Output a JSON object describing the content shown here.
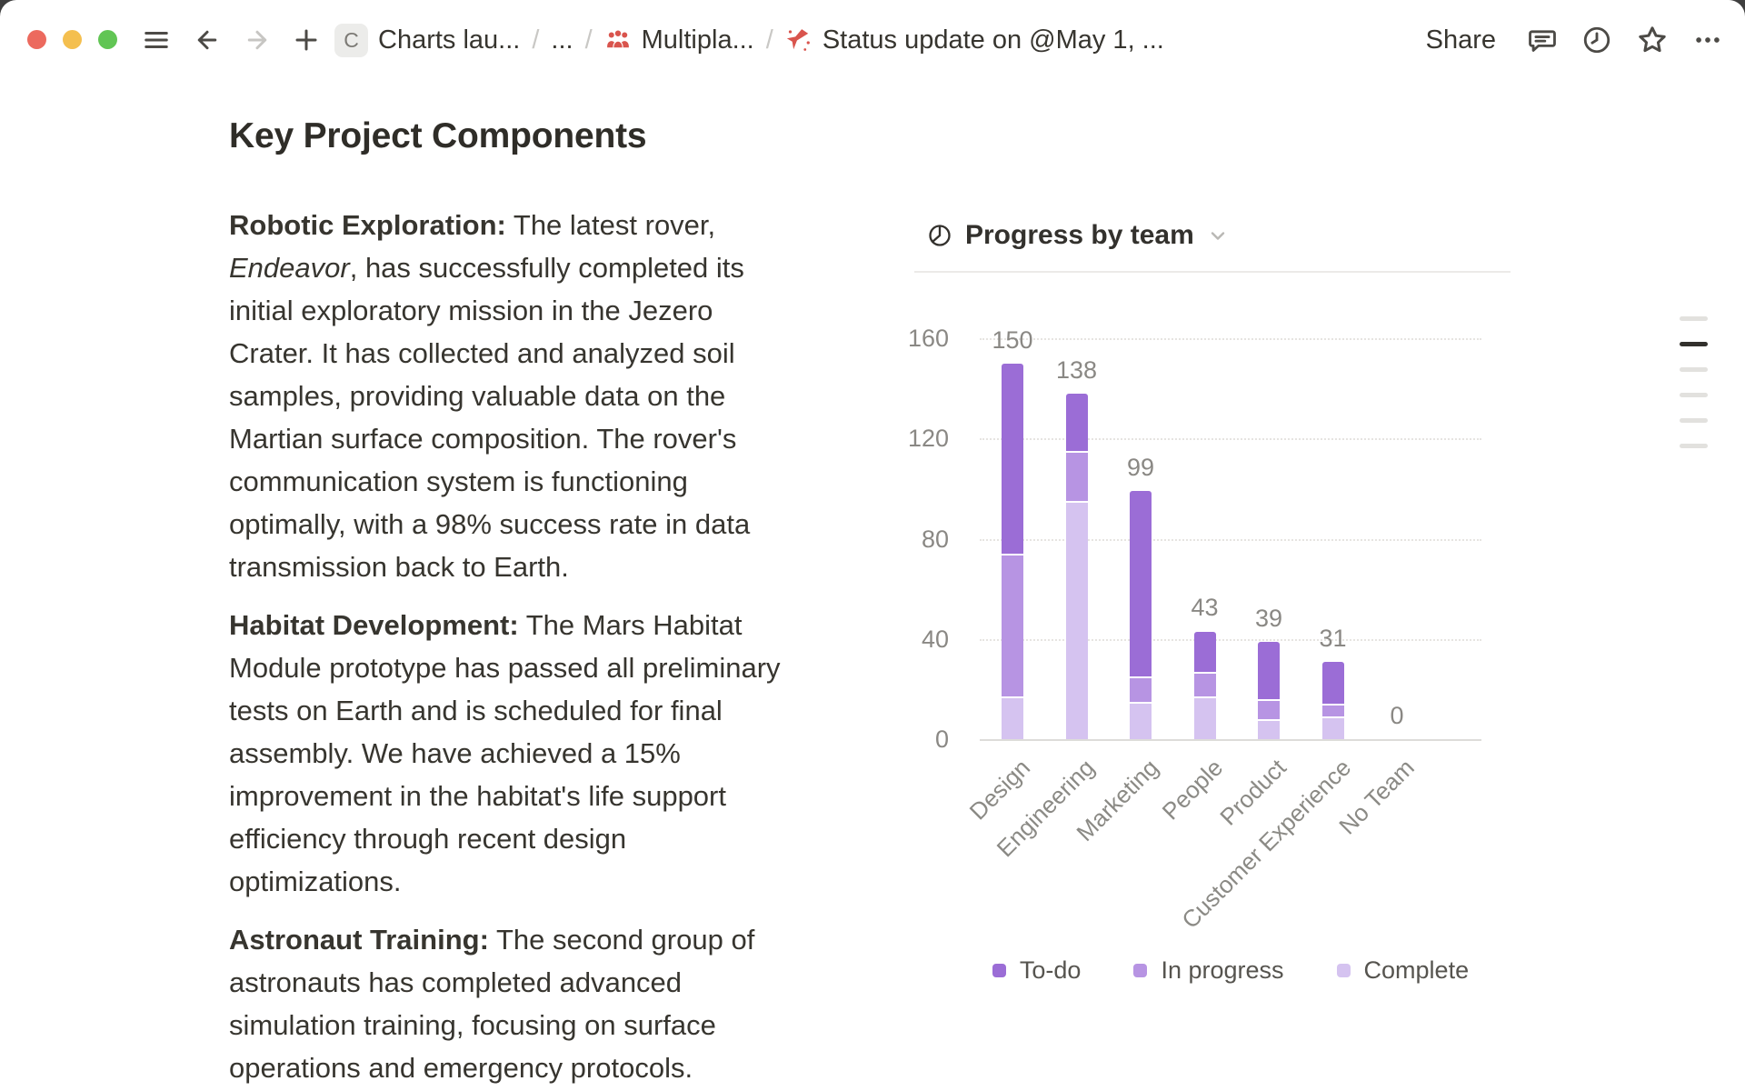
{
  "window": {
    "traffic_lights": {
      "close": "#ec6a5e",
      "minimize": "#f4bf4f",
      "zoom": "#61c554"
    }
  },
  "toolbar": {
    "share_label": "Share",
    "breadcrumb": {
      "separator": "/",
      "items": [
        {
          "chip_letter": "C",
          "label": "Charts lau..."
        },
        {
          "label": "..."
        },
        {
          "icon": "people-icon",
          "label": "Multipla..."
        },
        {
          "icon": "airplane-icon",
          "label": "Status update on @May 1, ..."
        }
      ]
    }
  },
  "document": {
    "title": "Key Project Components",
    "paragraphs": [
      {
        "segments": [
          {
            "text": "Robotic Exploration:",
            "bold": true
          },
          {
            "text": " The latest rover,\n"
          },
          {
            "text": "Endeavor",
            "italic": true
          },
          {
            "text": ", has successfully completed its\ninitial exploratory mission in the Jezero\nCrater. It has collected and analyzed soil\nsamples, providing valuable data on the\nMartian surface composition. The rover's\ncommunication system is functioning\noptimally, with a 98% success rate in data\ntransmission back to Earth."
          }
        ]
      },
      {
        "segments": [
          {
            "text": "Habitat Development:",
            "bold": true
          },
          {
            "text": " The Mars Habitat\nModule prototype has passed all preliminary\ntests on Earth and is scheduled for final\nassembly. We have achieved a 15%\nimprovement in the habitat's life support\nefficiency through recent design\noptimizations."
          }
        ]
      },
      {
        "segments": [
          {
            "text": "Astronaut Training:",
            "bold": true
          },
          {
            "text": " The second group of\nastronauts has completed advanced\nsimulation training, focusing on surface\noperations and emergency protocols."
          }
        ]
      }
    ]
  },
  "chart": {
    "header": {
      "title": "Progress by team",
      "icon": "pie-chart-icon"
    },
    "chart_data": {
      "type": "bar",
      "stacked": true,
      "title": "Progress by team",
      "categories": [
        "Design",
        "Engineering",
        "Marketing",
        "People",
        "Product",
        "Customer Experience",
        "No Team"
      ],
      "series": [
        {
          "name": "To-do",
          "color": "#9b6dd6",
          "values": [
            76,
            23,
            74,
            16,
            23,
            17,
            0
          ]
        },
        {
          "name": "In progress",
          "color": "#b794e3",
          "values": [
            57,
            20,
            10,
            10,
            8,
            5,
            0
          ]
        },
        {
          "name": "Complete",
          "color": "#d5c3f0",
          "values": [
            17,
            95,
            15,
            17,
            8,
            9,
            0
          ]
        }
      ],
      "totals": [
        150,
        138,
        99,
        43,
        39,
        31,
        0
      ],
      "y_ticks": [
        160,
        120,
        80,
        40,
        0
      ],
      "ylim": [
        0,
        160
      ],
      "grid": "dotted-horizontal",
      "legend_position": "bottom",
      "legend": [
        "To-do",
        "In progress",
        "Complete"
      ]
    }
  },
  "outline_marks": [
    "inactive",
    "active",
    "inactive",
    "inactive",
    "inactive",
    "inactive"
  ]
}
